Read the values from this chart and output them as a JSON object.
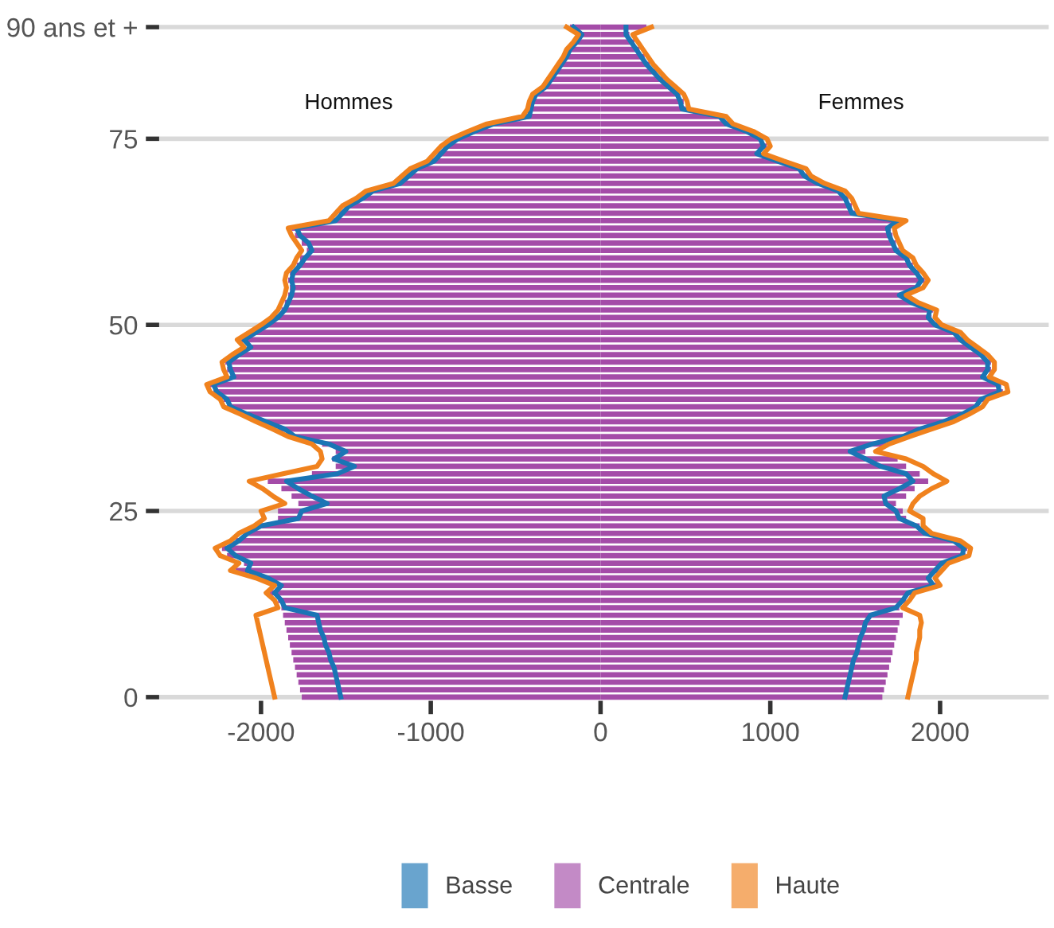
{
  "chart_data": {
    "type": "bar",
    "orientation": "horizontal",
    "stacked": true,
    "legend": "bottom",
    "grid": "y",
    "line_style": "solid",
    "annotations": [
      "Hommes",
      "Femmes"
    ],
    "categories": [
      "90 ans et +",
      null,
      null,
      null,
      null,
      null,
      null,
      null,
      null,
      null,
      null,
      null,
      null,
      null,
      null,
      "75",
      null,
      null,
      null,
      null,
      null,
      null,
      null,
      null,
      null,
      null,
      null,
      null,
      null,
      null,
      null,
      null,
      null,
      null,
      null,
      null,
      null,
      null,
      null,
      null,
      "50",
      null,
      null,
      null,
      null,
      null,
      null,
      null,
      null,
      null,
      null,
      null,
      null,
      null,
      null,
      null,
      null,
      null,
      null,
      null,
      null,
      null,
      null,
      null,
      null,
      "25",
      null,
      null,
      null,
      null,
      null,
      null,
      null,
      null,
      null,
      null,
      null,
      null,
      null,
      null,
      null,
      null,
      null,
      null,
      null,
      null,
      null,
      null,
      null,
      null,
      "0"
    ],
    "xlim": [
      -2600,
      2640
    ],
    "xticks": [
      -2000,
      -1000,
      0,
      1000,
      2000
    ],
    "series": [
      {
        "name": "Basse",
        "type": "line",
        "color": "#1a75b5",
        "values": [
          -160,
          -110,
          -140,
          -180,
          -200,
          -230,
          -260,
          -290,
          -320,
          -380,
          -400,
          -410,
          -420,
          -630,
          -740,
          -840,
          -900,
          -940,
          -980,
          -1080,
          -1130,
          -1180,
          -1340,
          -1400,
          -1480,
          -1520,
          -1560,
          -1790,
          -1770,
          -1720,
          -1700,
          -1740,
          -1770,
          -1810,
          -1820,
          -1810,
          -1820,
          -1840,
          -1860,
          -1900,
          -1960,
          -2030,
          -2100,
          -2060,
          -2130,
          -2190,
          -2180,
          -2160,
          -2280,
          -2260,
          -2200,
          -2180,
          -2080,
          -1970,
          -1860,
          -1800,
          -1600,
          -1500,
          -1570,
          -1450,
          -1550,
          -1850,
          -1780,
          -1700,
          -1610,
          -1760,
          -1780,
          -2000,
          -2080,
          -2130,
          -2200,
          -2150,
          -2060,
          -2080,
          -1960,
          -1880,
          -1920,
          -1880,
          -1860,
          -1670,
          -1660,
          -1650,
          -1630,
          -1620,
          -1600,
          -1590,
          -1570,
          -1560,
          -1550,
          -1540,
          -1530
        ]
      },
      {
        "name": "Centrale",
        "color": "#a44ca8",
        "values": [
          -180,
          -120,
          -150,
          -190,
          -210,
          -240,
          -270,
          -300,
          -330,
          -390,
          -410,
          -420,
          -440,
          -650,
          -760,
          -860,
          -920,
          -960,
          -1000,
          -1100,
          -1150,
          -1200,
          -1360,
          -1420,
          -1500,
          -1540,
          -1580,
          -1820,
          -1800,
          -1760,
          -1730,
          -1770,
          -1790,
          -1830,
          -1840,
          -1830,
          -1840,
          -1860,
          -1880,
          -1920,
          -1980,
          -2050,
          -2120,
          -2080,
          -2150,
          -2210,
          -2200,
          -2180,
          -2300,
          -2280,
          -2220,
          -2200,
          -2100,
          -2000,
          -1900,
          -1820,
          -1640,
          -1560,
          -1580,
          -1560,
          -1700,
          -1960,
          -1880,
          -1820,
          -1780,
          -1900,
          -1900,
          -2020,
          -2100,
          -2150,
          -2230,
          -2200,
          -2100,
          -2150,
          -2000,
          -1900,
          -1950,
          -1900,
          -1880,
          -1870,
          -1860,
          -1850,
          -1840,
          -1830,
          -1820,
          -1810,
          -1800,
          -1790,
          -1780,
          -1770,
          -1760
        ]
      },
      {
        "name": "Haute",
        "type": "line",
        "color": "#f0821e",
        "values": [
          -200,
          -130,
          -160,
          -200,
          -220,
          -250,
          -280,
          -310,
          -340,
          -400,
          -420,
          -430,
          -460,
          -670,
          -780,
          -880,
          -940,
          -980,
          -1020,
          -1120,
          -1170,
          -1220,
          -1380,
          -1440,
          -1520,
          -1560,
          -1600,
          -1840,
          -1820,
          -1790,
          -1760,
          -1790,
          -1810,
          -1850,
          -1860,
          -1850,
          -1860,
          -1880,
          -1900,
          -1940,
          -2000,
          -2070,
          -2140,
          -2100,
          -2170,
          -2230,
          -2220,
          -2200,
          -2320,
          -2300,
          -2240,
          -2220,
          -2120,
          -2030,
          -1930,
          -1840,
          -1700,
          -1650,
          -1640,
          -1670,
          -1870,
          -2070,
          -1990,
          -1930,
          -1860,
          -2000,
          -1980,
          -2040,
          -2130,
          -2180,
          -2270,
          -2240,
          -2130,
          -2180,
          -2030,
          -1920,
          -1970,
          -1920,
          -1900,
          -2030,
          -2020,
          -2010,
          -2000,
          -1990,
          -1980,
          -1970,
          -1960,
          -1950,
          -1940,
          -1930,
          -1920
        ]
      },
      {
        "type": "line",
        "color": "#1a75b5",
        "values": [
          150,
          150,
          180,
          210,
          240,
          270,
          310,
          350,
          400,
          450,
          470,
          480,
          700,
          740,
          860,
          940,
          960,
          920,
          1040,
          1170,
          1200,
          1280,
          1400,
          1440,
          1460,
          1480,
          1750,
          1690,
          1700,
          1720,
          1740,
          1800,
          1820,
          1860,
          1890,
          1860,
          1760,
          1830,
          1940,
          1930,
          1970,
          2080,
          2120,
          2180,
          2240,
          2280,
          2280,
          2250,
          2340,
          2350,
          2240,
          2210,
          2130,
          2020,
          1880,
          1780,
          1600,
          1470,
          1560,
          1650,
          1800,
          1840,
          1760,
          1670,
          1680,
          1740,
          1760,
          1860,
          1910,
          2080,
          2140,
          2130,
          2010,
          1970,
          1930,
          1960,
          1810,
          1780,
          1740,
          1590,
          1560,
          1550,
          1530,
          1520,
          1510,
          1490,
          1480,
          1470,
          1460,
          1450,
          1440
        ]
      },
      {
        "color": "#a44ca8",
        "values": [
          270,
          170,
          200,
          230,
          260,
          290,
          330,
          370,
          420,
          470,
          490,
          500,
          720,
          760,
          880,
          960,
          980,
          940,
          1060,
          1190,
          1220,
          1300,
          1420,
          1460,
          1480,
          1500,
          1780,
          1710,
          1720,
          1740,
          1760,
          1820,
          1840,
          1880,
          1910,
          1880,
          1780,
          1850,
          1960,
          1950,
          1990,
          2100,
          2140,
          2200,
          2260,
          2300,
          2300,
          2270,
          2360,
          2370,
          2260,
          2230,
          2150,
          2050,
          1920,
          1800,
          1680,
          1560,
          1750,
          1800,
          1880,
          1930,
          1850,
          1800,
          1740,
          1780,
          1800,
          1880,
          1930,
          2100,
          2160,
          2150,
          2030,
          1990,
          1950,
          1980,
          1830,
          1800,
          1760,
          1780,
          1760,
          1750,
          1740,
          1730,
          1720,
          1710,
          1700,
          1690,
          1680,
          1670,
          1660
        ]
      },
      {
        "type": "line",
        "color": "#f0821e",
        "values": [
          300,
          190,
          220,
          250,
          280,
          310,
          350,
          390,
          440,
          490,
          510,
          520,
          740,
          780,
          900,
          980,
          1000,
          960,
          1080,
          1210,
          1240,
          1320,
          1440,
          1480,
          1500,
          1520,
          1800,
          1730,
          1740,
          1760,
          1780,
          1840,
          1860,
          1900,
          1930,
          1900,
          1800,
          1870,
          1980,
          1970,
          2010,
          2120,
          2160,
          2220,
          2280,
          2320,
          2320,
          2290,
          2390,
          2400,
          2280,
          2250,
          2170,
          2080,
          1950,
          1820,
          1700,
          1620,
          1800,
          1900,
          1960,
          2040,
          1950,
          1880,
          1840,
          1820,
          1900,
          1900,
          1950,
          2120,
          2180,
          2170,
          2050,
          2010,
          1970,
          2000,
          1850,
          1820,
          1780,
          1880,
          1890,
          1880,
          1880,
          1870,
          1860,
          1860,
          1850,
          1840,
          1830,
          1820,
          1810
        ]
      }
    ]
  }
}
